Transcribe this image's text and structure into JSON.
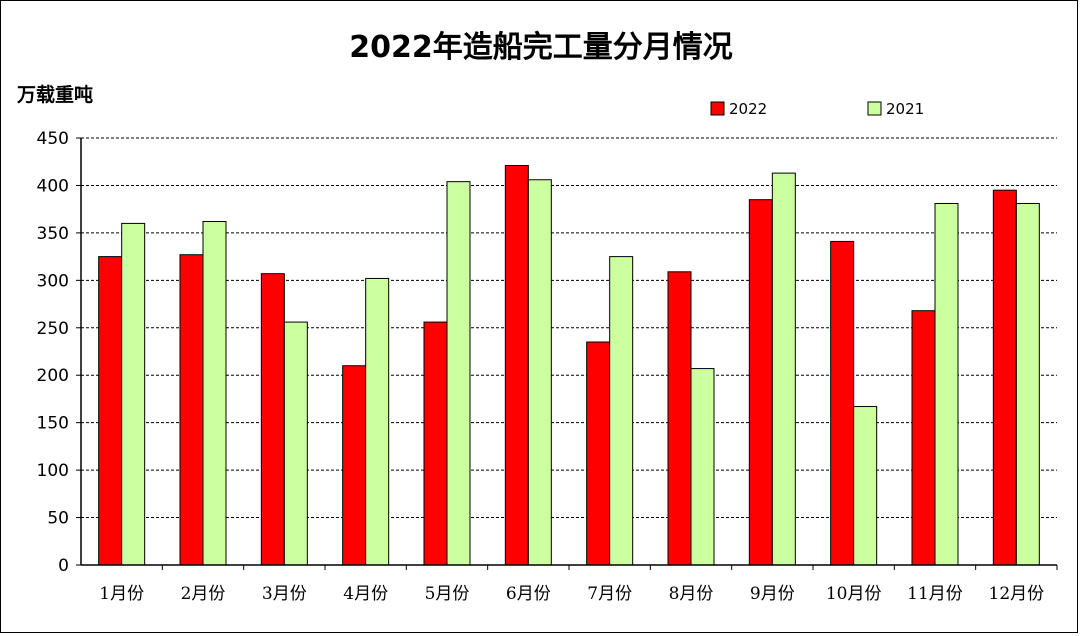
{
  "chart_data": {
    "type": "bar",
    "title": "2022年造船完工量分月情况",
    "ylabel": "万载重吨",
    "xlabel": "",
    "categories": [
      "1月份",
      "2月份",
      "3月份",
      "4月份",
      "5月份",
      "6月份",
      "7月份",
      "8月份",
      "9月份",
      "10月份",
      "11月份",
      "12月份"
    ],
    "series": [
      {
        "name": "2022",
        "color": "#ff0000",
        "values": [
          325,
          327,
          307,
          210,
          256,
          421,
          235,
          309,
          385,
          341,
          268,
          395
        ]
      },
      {
        "name": "2021",
        "color": "#ccffa0",
        "values": [
          360,
          362,
          256,
          302,
          404,
          406,
          325,
          207,
          413,
          167,
          381,
          381
        ]
      }
    ],
    "ylim": [
      0,
      450
    ],
    "yticks": [
      0,
      50,
      100,
      150,
      200,
      250,
      300,
      350,
      400,
      450
    ],
    "grid": true,
    "legend": "top-right"
  }
}
